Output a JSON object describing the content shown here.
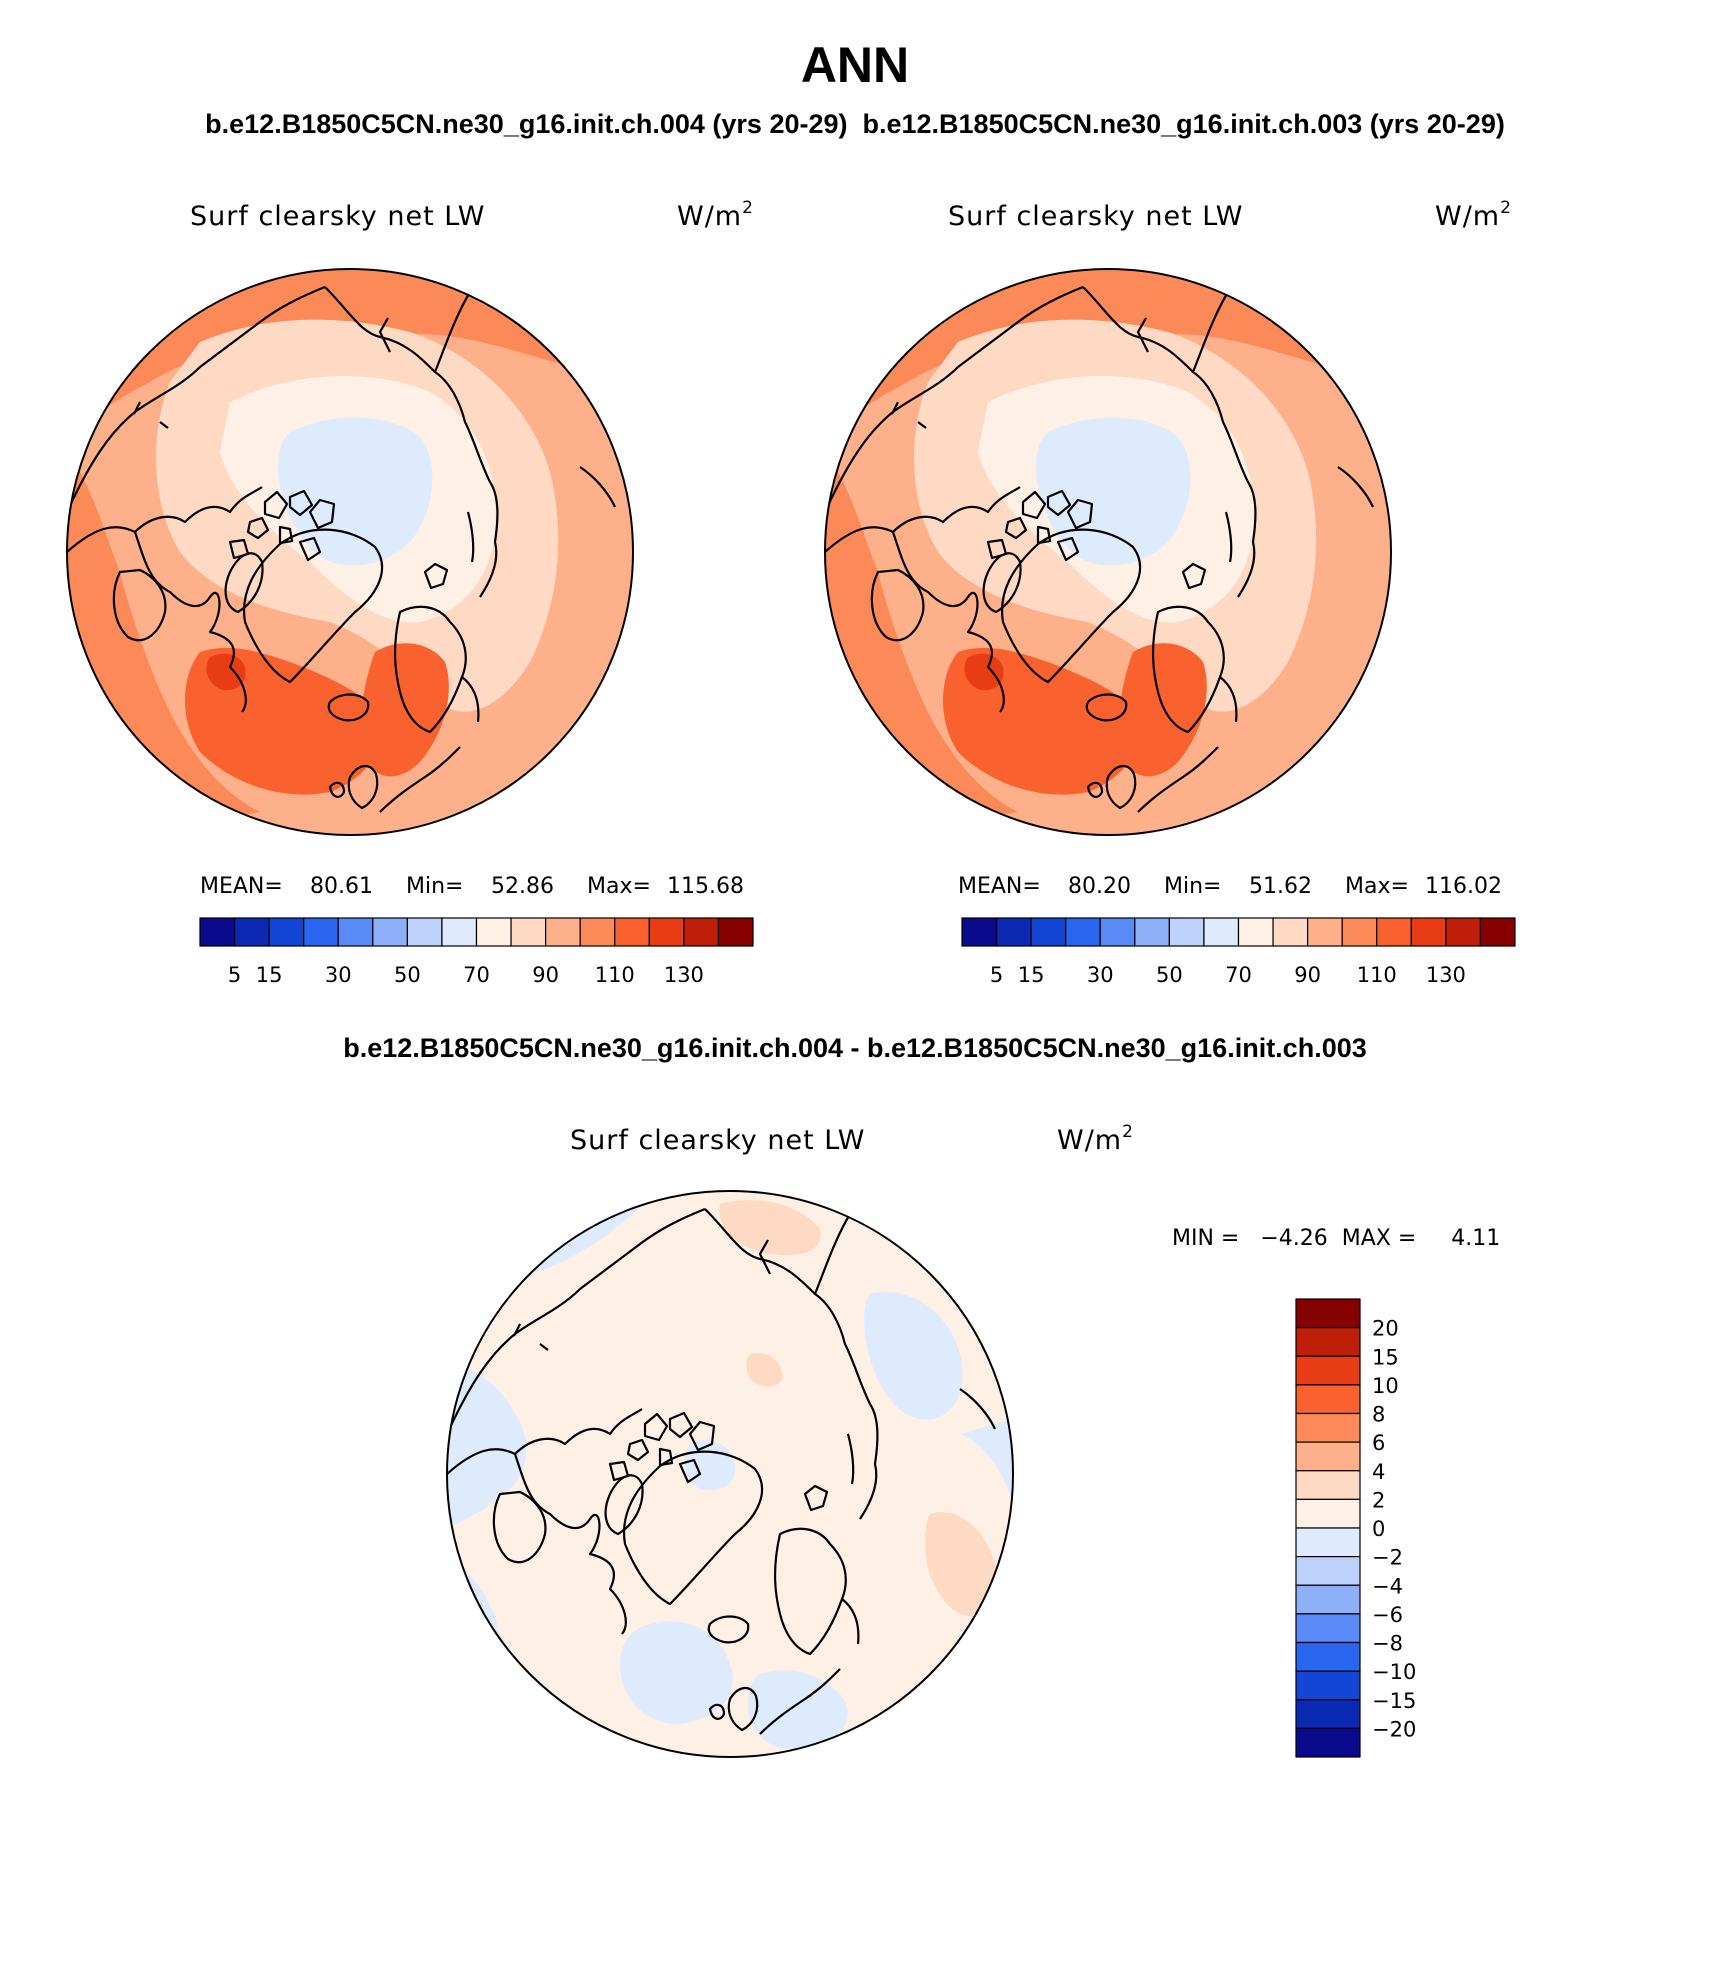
{
  "title": "ANN",
  "subtitle_top": "b.e12.B1850C5CN.ne30_g16.init.ch.004 (yrs 20-29)  b.e12.B1850C5CN.ne30_g16.init.ch.003 (yrs 20-29)",
  "subtitle_diff": "b.e12.B1850C5CN.ne30_g16.init.ch.004 - b.e12.B1850C5CN.ne30_g16.init.ch.003",
  "variable": "Surf clearsky net LW",
  "units": "W/m",
  "units_sup": "2",
  "panels": [
    {
      "mean_label": "MEAN=",
      "mean": "80.61",
      "min_label": "Min=",
      "min": "52.86",
      "max_label": "Max=",
      "max": "115.68"
    },
    {
      "mean_label": "MEAN=",
      "mean": "80.20",
      "min_label": "Min=",
      "min": "51.62",
      "max_label": "Max=",
      "max": "116.02"
    }
  ],
  "diff_stats": "MIN =   −4.26  MAX =     4.11",
  "colorbar_abs": {
    "colors": [
      "#0a0a8c",
      "#0b2ab4",
      "#1446d6",
      "#2a66f0",
      "#5a8af5",
      "#8db0f8",
      "#bcd2fb",
      "#ddebfd",
      "#fff0e6",
      "#fed9c4",
      "#fdb08a",
      "#fc8a58",
      "#f9622e",
      "#e83c14",
      "#bf1e08",
      "#860000"
    ],
    "tick_labels": [
      "5",
      "15",
      "30",
      "50",
      "70",
      "90",
      "110",
      "130"
    ]
  },
  "colorbar_diff": {
    "colors": [
      "#860000",
      "#bf1e08",
      "#e83c14",
      "#f9622e",
      "#fc8a58",
      "#fdb08a",
      "#fed9c4",
      "#fff0e6",
      "#ddebfd",
      "#bcd2fb",
      "#8db0f8",
      "#5a8af5",
      "#2a66f0",
      "#1446d6",
      "#0b2ab4",
      "#0a0a8c"
    ],
    "tick_labels": [
      "20",
      "15",
      "10",
      "8",
      "6",
      "4",
      "2",
      "0",
      "−2",
      "−4",
      "−6",
      "−8",
      "−10",
      "−15",
      "−20"
    ]
  }
}
